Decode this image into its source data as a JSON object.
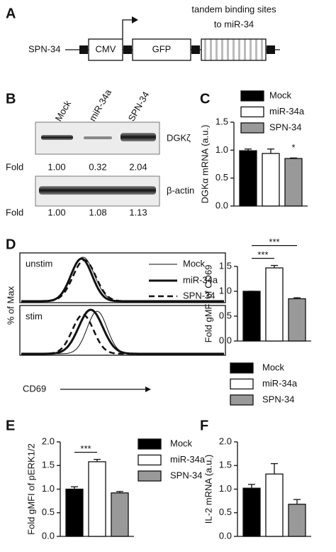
{
  "panel_labels": [
    "A",
    "B",
    "C",
    "D",
    "E",
    "F"
  ],
  "construct": {
    "name": "SPN-34",
    "elements": [
      "CMV",
      "GFP"
    ],
    "note": [
      "tandem binding sites",
      "to miR-34"
    ]
  },
  "blot": {
    "lanes": [
      "Mock",
      "miR-34a",
      "SPN-34"
    ],
    "rows": [
      {
        "target": "DGKζ",
        "fold_label": "Fold",
        "fold": [
          "1.00",
          "0.32",
          "2.04"
        ]
      },
      {
        "target": "β-actin",
        "fold_label": "Fold",
        "fold": [
          "1.00",
          "1.08",
          "1.13"
        ]
      }
    ]
  },
  "flow": {
    "panels": [
      "unstim",
      "stim"
    ],
    "legend": [
      "Mock",
      "miR-34a",
      "SPN-34"
    ],
    "ylabel": "% of Max",
    "xlabel": "CD69"
  },
  "chart_data": [
    {
      "type": "bar",
      "ylabel": "DGKα mRNA (a.u.)",
      "categories": [
        "Mock",
        "miR-34a",
        "SPN-34"
      ],
      "values": [
        0.99,
        0.94,
        0.85
      ],
      "errors": [
        0.03,
        0.08,
        0.01
      ],
      "colors": [
        "#000000",
        "#ffffff",
        "#999999"
      ],
      "ylim": [
        0,
        1.5
      ],
      "yticks": [
        {
          "value": 0,
          "label": "0.0"
        },
        0.5,
        {
          "value": 1,
          "label": "1.0"
        },
        1.5
      ],
      "legend": "upper right",
      "significance": [
        {
          "bars": [
            "SPN-34"
          ],
          "label": "*"
        }
      ]
    },
    {
      "type": "bar",
      "ylabel": "Fold gMFI of CD69",
      "categories": [
        "Mock",
        "miR-34a",
        "SPN-34"
      ],
      "values": [
        1.0,
        1.47,
        0.85
      ],
      "errors": [
        0,
        0.05,
        0.02
      ],
      "colors": [
        "#000000",
        "#ffffff",
        "#999999"
      ],
      "ylim": [
        0,
        1.5
      ],
      "yticks": [
        {
          "value": 0,
          "label": "0.0"
        },
        0.5,
        {
          "value": 1,
          "label": "1.0"
        },
        1.5
      ],
      "legend": "below",
      "significance": [
        {
          "bars": [
            "Mock",
            "miR-34a"
          ],
          "label": "***"
        },
        {
          "bars": [
            "Mock",
            "SPN-34"
          ],
          "label": "***"
        }
      ]
    },
    {
      "type": "bar",
      "ylabel": "Fold gMFI of pERK1/2",
      "categories": [
        "Mock",
        "miR-34a",
        "SPN-34"
      ],
      "values": [
        1.0,
        1.58,
        0.92
      ],
      "errors": [
        0.05,
        0.05,
        0.03
      ],
      "colors": [
        "#000000",
        "#ffffff",
        "#999999"
      ],
      "ylim": [
        0,
        2
      ],
      "yticks": [
        {
          "value": 0,
          "label": "0.0"
        },
        0.5,
        {
          "value": 1,
          "label": "1.0"
        },
        1.5,
        {
          "value": 2,
          "label": "2.0"
        }
      ],
      "legend": "right",
      "significance": [
        {
          "bars": [
            "Mock",
            "miR-34a"
          ],
          "label": "***"
        }
      ]
    },
    {
      "type": "bar",
      "ylabel": "IL-2 mRNA (a.u.)",
      "values": [
        1.02,
        1.32,
        0.68
      ],
      "errors": [
        0.08,
        0.22,
        0.1
      ],
      "colors": [
        "#000000",
        "#ffffff",
        "#999999"
      ],
      "ylim": [
        0,
        2
      ],
      "yticks": [
        {
          "value": 0,
          "label": "0.0"
        },
        0.5,
        {
          "value": 1,
          "label": "1.0"
        },
        1.5,
        {
          "value": 2,
          "label": "2.0"
        }
      ]
    }
  ]
}
